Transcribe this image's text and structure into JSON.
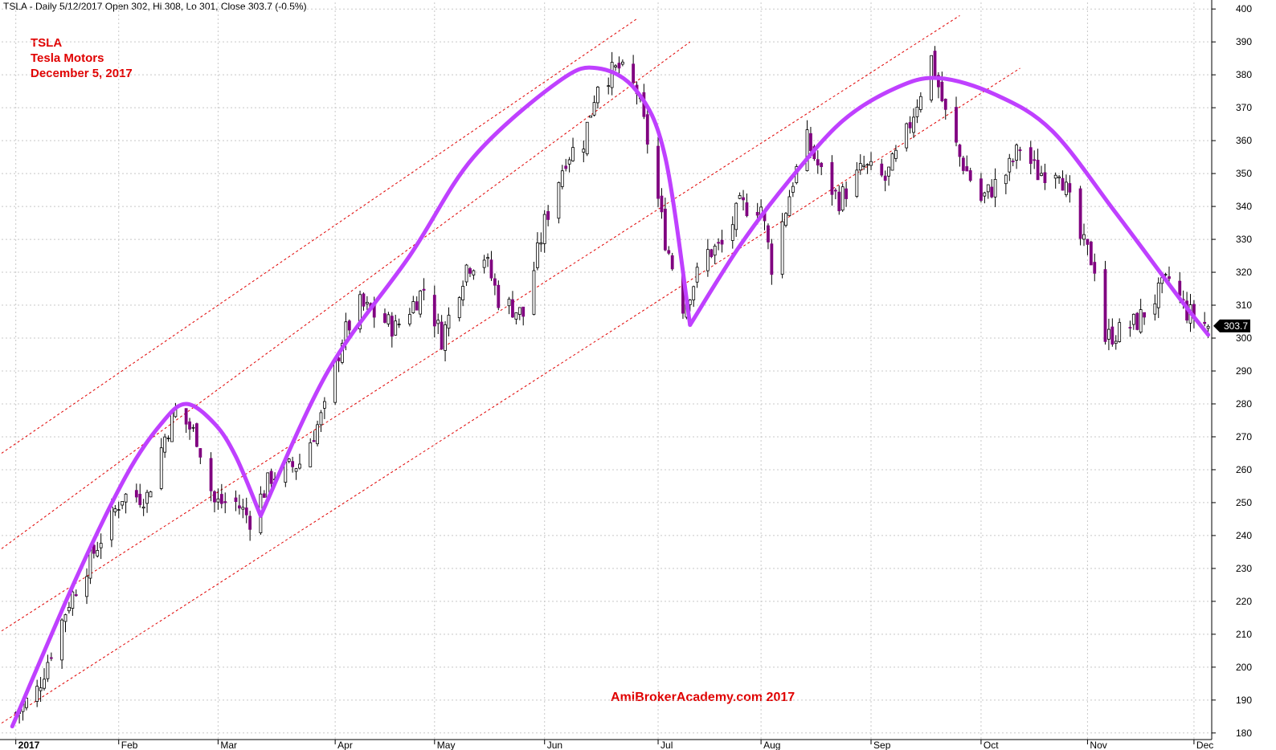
{
  "header": "TSLA - Daily 5/12/2017 Open 302, Hi 308, Lo 301, Close 303.7 (-0.5%)",
  "annotation": {
    "ticker": "TSLA",
    "name": "Tesla Motors",
    "date": "December 5, 2017"
  },
  "watermark": "AmiBrokerAcademy.com  2017",
  "colors": {
    "up": "#ffffff",
    "down": "#800080",
    "wick": "#000000",
    "arc": "#bf40ff",
    "channel": "#e00000",
    "grid": "#c8c8c8",
    "text_red": "#e00000"
  },
  "chart_data": {
    "type": "candlestick",
    "ylim": [
      178,
      402
    ],
    "y_ticks": [
      180,
      190,
      200,
      210,
      220,
      230,
      240,
      250,
      260,
      270,
      280,
      290,
      300,
      310,
      320,
      330,
      340,
      350,
      360,
      370,
      380,
      390,
      400
    ],
    "x_range": [
      "2016-12-30",
      "2017-12-06"
    ],
    "month_ticks": [
      {
        "date": "2017-01-03",
        "label": "2017"
      },
      {
        "date": "2017-02-01",
        "label": "Feb"
      },
      {
        "date": "2017-03-01",
        "label": "Mar"
      },
      {
        "date": "2017-04-03",
        "label": "Apr"
      },
      {
        "date": "2017-05-01",
        "label": "May"
      },
      {
        "date": "2017-06-01",
        "label": "Jun"
      },
      {
        "date": "2017-07-03",
        "label": "Jul"
      },
      {
        "date": "2017-08-01",
        "label": "Aug"
      },
      {
        "date": "2017-09-01",
        "label": "Sep"
      },
      {
        "date": "2017-10-02",
        "label": "Oct"
      },
      {
        "date": "2017-11-01",
        "label": "Nov"
      },
      {
        "date": "2017-12-01",
        "label": "Dec"
      }
    ],
    "last_price": "303.7",
    "anchors": [
      [
        "2017-01-03",
        186
      ],
      [
        "2017-01-09",
        193
      ],
      [
        "2017-01-18",
        220
      ],
      [
        "2017-01-25",
        235
      ],
      [
        "2017-02-02",
        252
      ],
      [
        "2017-02-09",
        252
      ],
      [
        "2017-02-14",
        270
      ],
      [
        "2017-02-17",
        278
      ],
      [
        "2017-02-23",
        270
      ],
      [
        "2017-02-28",
        250
      ],
      [
        "2017-03-06",
        250
      ],
      [
        "2017-03-10",
        245
      ],
      [
        "2017-03-16",
        258
      ],
      [
        "2017-03-24",
        262
      ],
      [
        "2017-03-31",
        278
      ],
      [
        "2017-04-05",
        300
      ],
      [
        "2017-04-10",
        310
      ],
      [
        "2017-04-20",
        303
      ],
      [
        "2017-04-28",
        315
      ],
      [
        "2017-05-03",
        300
      ],
      [
        "2017-05-10",
        322
      ],
      [
        "2017-05-15",
        325
      ],
      [
        "2017-05-19",
        312
      ],
      [
        "2017-05-26",
        307
      ],
      [
        "2017-06-01",
        335
      ],
      [
        "2017-06-07",
        355
      ],
      [
        "2017-06-12",
        360
      ],
      [
        "2017-06-16",
        378
      ],
      [
        "2017-06-22",
        382
      ],
      [
        "2017-06-27",
        375
      ],
      [
        "2017-06-30",
        360
      ],
      [
        "2017-07-05",
        330
      ],
      [
        "2017-07-10",
        310
      ],
      [
        "2017-07-17",
        326
      ],
      [
        "2017-07-21",
        328
      ],
      [
        "2017-07-26",
        340
      ],
      [
        "2017-08-01",
        340
      ],
      [
        "2017-08-04",
        322
      ],
      [
        "2017-08-10",
        348
      ],
      [
        "2017-08-14",
        360
      ],
      [
        "2017-08-18",
        350
      ],
      [
        "2017-08-23",
        342
      ],
      [
        "2017-08-30",
        352
      ],
      [
        "2017-09-05",
        348
      ],
      [
        "2017-09-11",
        362
      ],
      [
        "2017-09-14",
        372
      ],
      [
        "2017-09-18",
        385
      ],
      [
        "2017-09-22",
        368
      ],
      [
        "2017-09-26",
        355
      ],
      [
        "2017-10-02",
        342
      ],
      [
        "2017-10-09",
        350
      ],
      [
        "2017-10-13",
        358
      ],
      [
        "2017-10-18",
        350
      ],
      [
        "2017-10-24",
        352
      ],
      [
        "2017-10-30",
        330
      ],
      [
        "2017-11-03",
        322
      ],
      [
        "2017-11-06",
        300
      ],
      [
        "2017-11-10",
        302
      ],
      [
        "2017-11-15",
        305
      ],
      [
        "2017-11-20",
        312
      ],
      [
        "2017-11-24",
        318
      ],
      [
        "2017-11-29",
        308
      ],
      [
        "2017-12-05",
        303.7
      ]
    ],
    "channel_lines": [
      [
        [
          "2016-12-30",
          265
        ],
        [
          "2017-06-27",
          397
        ]
      ],
      [
        [
          "2016-12-30",
          236
        ],
        [
          "2017-07-12",
          390
        ]
      ],
      [
        [
          "2016-12-30",
          211
        ],
        [
          "2017-09-26",
          398
        ]
      ],
      [
        [
          "2016-12-30",
          183
        ],
        [
          "2017-10-13",
          382
        ]
      ]
    ],
    "arcs": [
      [
        [
          "2017-01-02",
          182
        ],
        [
          "2017-01-20",
          227
        ],
        [
          "2017-02-03",
          258
        ],
        [
          "2017-02-13",
          274
        ],
        [
          "2017-02-20",
          280
        ],
        [
          "2017-02-28",
          274
        ],
        [
          "2017-03-06",
          264
        ],
        [
          "2017-03-13",
          246
        ]
      ],
      [
        [
          "2017-03-13",
          246
        ],
        [
          "2017-04-01",
          290
        ],
        [
          "2017-04-24",
          325
        ],
        [
          "2017-05-12",
          355
        ],
        [
          "2017-06-05",
          378
        ],
        [
          "2017-06-16",
          382
        ],
        [
          "2017-06-27",
          375
        ],
        [
          "2017-07-05",
          355
        ],
        [
          "2017-07-12",
          304
        ]
      ],
      [
        [
          "2017-07-12",
          304
        ],
        [
          "2017-07-26",
          328
        ],
        [
          "2017-08-09",
          348
        ],
        [
          "2017-08-24",
          366
        ],
        [
          "2017-09-08",
          376
        ],
        [
          "2017-09-20",
          379
        ],
        [
          "2017-10-06",
          374
        ],
        [
          "2017-10-22",
          363
        ],
        [
          "2017-11-09",
          338
        ],
        [
          "2017-11-27",
          312
        ],
        [
          "2017-12-05",
          301
        ]
      ]
    ]
  }
}
